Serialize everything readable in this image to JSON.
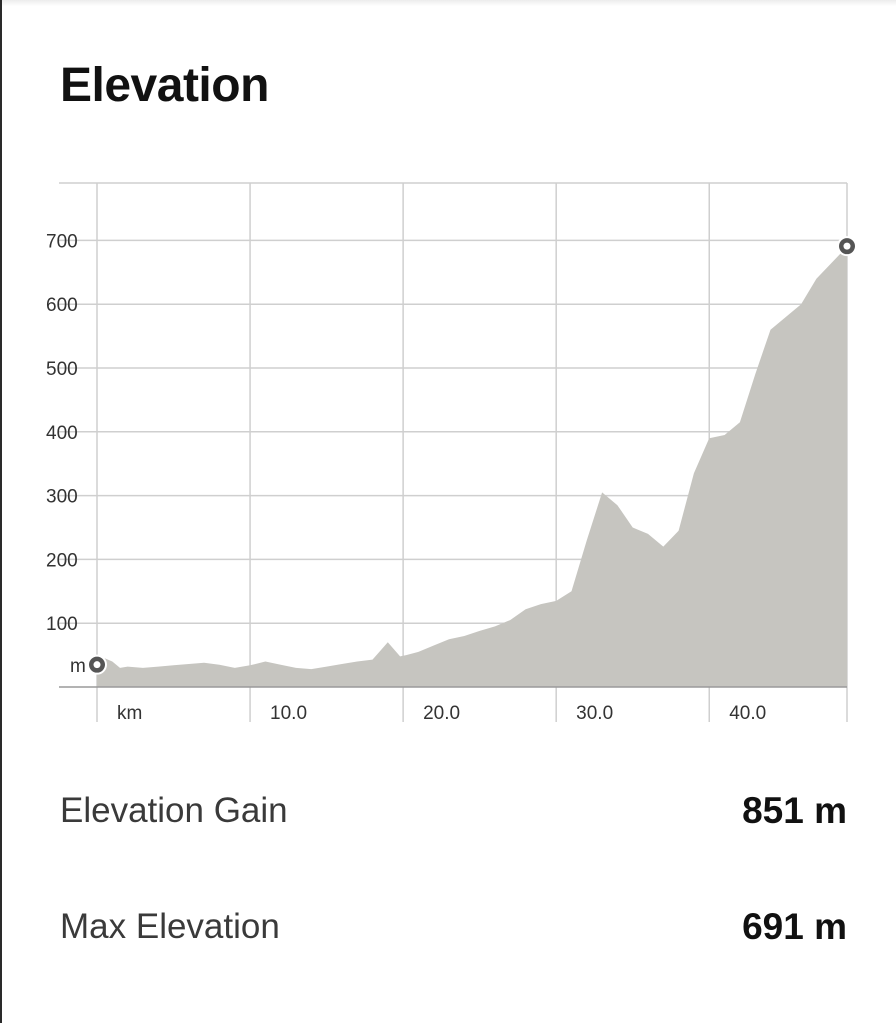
{
  "title": "Elevation",
  "stats": {
    "elevation_gain_label": "Elevation Gain",
    "elevation_gain_value": "851 m",
    "max_elevation_label": "Max Elevation",
    "max_elevation_value": "691 m"
  },
  "colors": {
    "area_fill": "#c6c5c0",
    "grid": "#cfcfcf",
    "marker": "#555555"
  },
  "chart_data": {
    "type": "area",
    "title": "Elevation",
    "xlabel": "km",
    "ylabel": "m",
    "xlim": [
      0,
      49
    ],
    "ylim": [
      0,
      790
    ],
    "x_ticks": [
      0,
      10,
      20,
      30,
      40
    ],
    "x_tick_labels": [
      "km",
      "10.0",
      "20.0",
      "30.0",
      "40.0"
    ],
    "y_ticks": [
      100,
      200,
      300,
      400,
      500,
      600,
      700
    ],
    "y_tick_labels": [
      "100",
      "200",
      "300",
      "400",
      "500",
      "600",
      "700"
    ],
    "grid": true,
    "series": [
      {
        "x": [
          0,
          0.5,
          1,
          1.5,
          2,
          3,
          4,
          5,
          6,
          7,
          8,
          9,
          10,
          11,
          12,
          13,
          14,
          15,
          16,
          17,
          18,
          19,
          19.8,
          20.2,
          21,
          22,
          23,
          24,
          25,
          26,
          27,
          28,
          29,
          30,
          31,
          32,
          33,
          34,
          35,
          36,
          37,
          38,
          39,
          40,
          41,
          42,
          43,
          44,
          45,
          46,
          47,
          48,
          49
        ],
        "y": [
          35,
          45,
          40,
          30,
          32,
          30,
          32,
          34,
          36,
          38,
          35,
          30,
          34,
          40,
          35,
          30,
          28,
          32,
          36,
          40,
          43,
          70,
          48,
          50,
          55,
          65,
          75,
          80,
          88,
          95,
          105,
          122,
          130,
          135,
          150,
          230,
          305,
          285,
          250,
          240,
          220,
          245,
          335,
          390,
          395,
          415,
          490,
          560,
          580,
          600,
          640,
          665,
          690
        ]
      }
    ],
    "start_marker": {
      "x": 0,
      "y": 35
    },
    "end_marker": {
      "x": 49,
      "y": 691
    }
  }
}
